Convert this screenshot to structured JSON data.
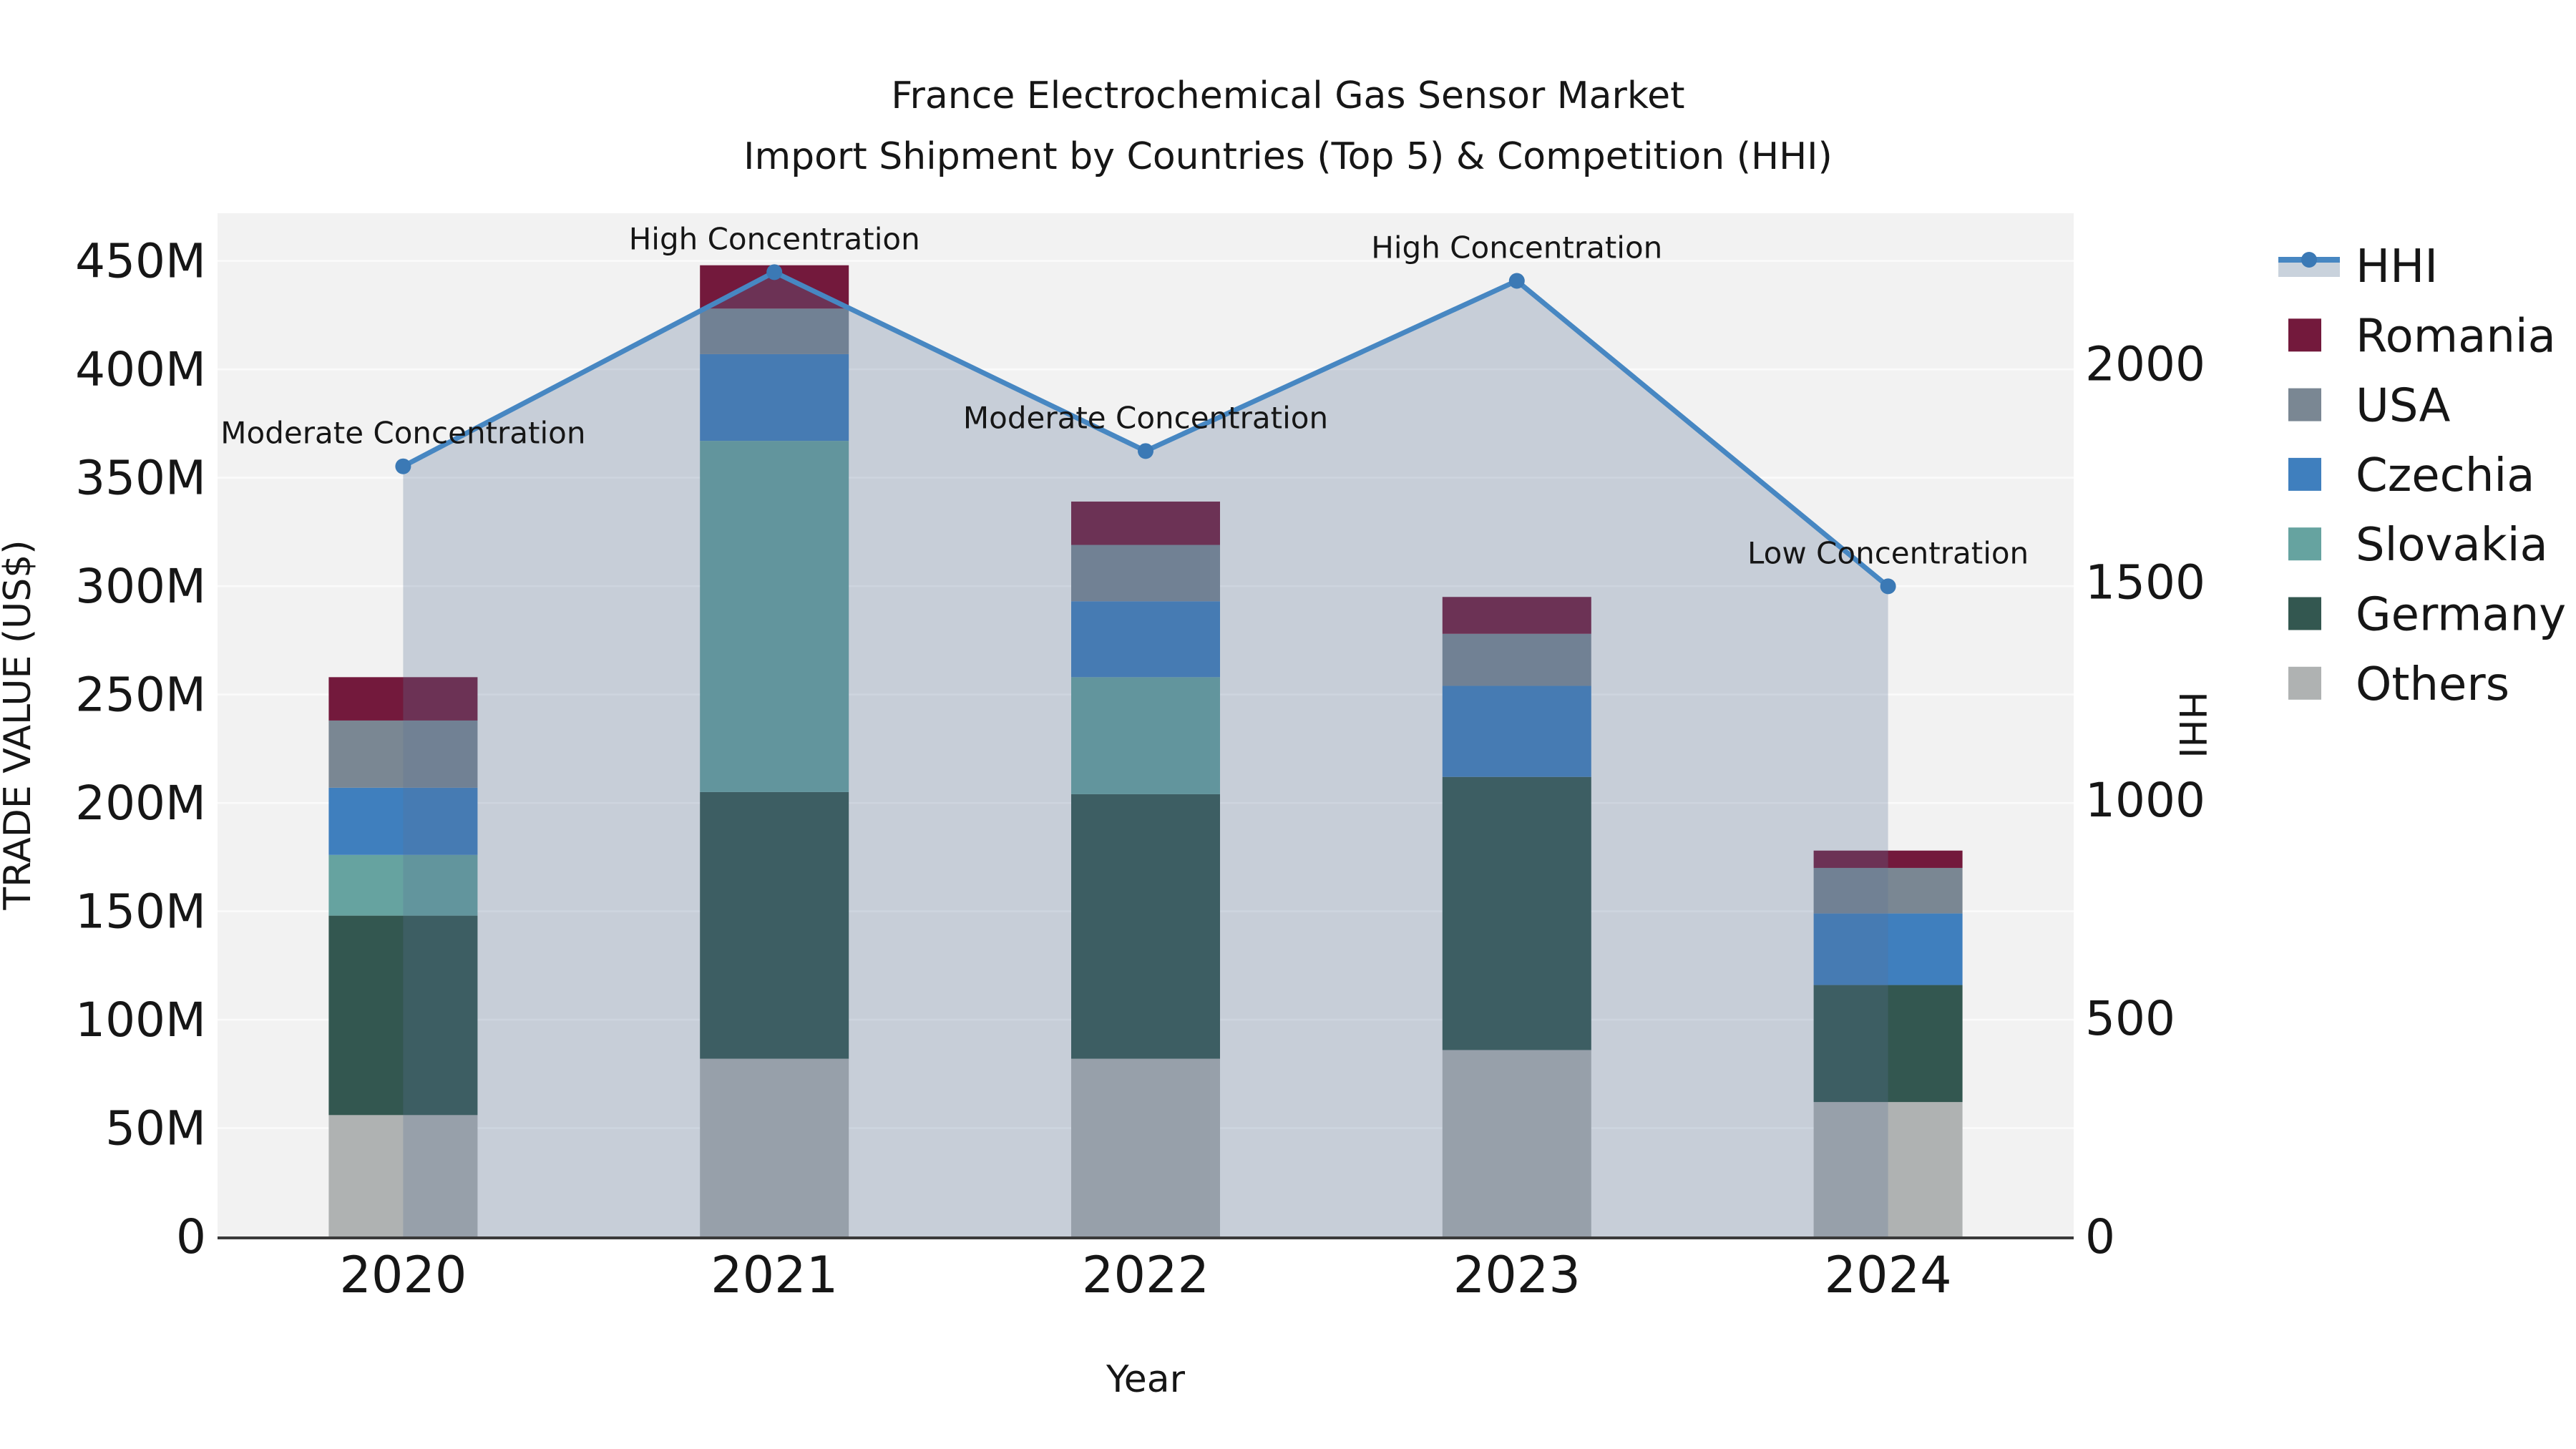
{
  "title": {
    "line1": "France Electrochemical Gas Sensor Market",
    "line2": "Import Shipment by Countries (Top 5) & Competition (HHI)"
  },
  "axes": {
    "x_title": "Year",
    "y_left_title": "TRADE VALUE (US$)",
    "y_right_title": "HHI"
  },
  "chart_data": {
    "type": "bar",
    "stacked": true,
    "title": "France Electrochemical Gas Sensor Market — Import Shipment by Countries (Top 5) & Competition (HHI)",
    "categories": [
      "2020",
      "2021",
      "2022",
      "2023",
      "2024"
    ],
    "series": [
      {
        "name": "Others",
        "color": "#AFB2B2",
        "values": [
          56,
          82,
          82,
          86,
          62
        ]
      },
      {
        "name": "Germany",
        "color": "#335750",
        "values": [
          92,
          123,
          122,
          126,
          54
        ]
      },
      {
        "name": "Slovakia",
        "color": "#66A3A0",
        "values": [
          28,
          162,
          54,
          0,
          0
        ]
      },
      {
        "name": "Czechia",
        "color": "#3F7FBE",
        "values": [
          31,
          40,
          35,
          42,
          33
        ]
      },
      {
        "name": "USA",
        "color": "#7A8793",
        "values": [
          31,
          21,
          26,
          24,
          21
        ]
      },
      {
        "name": "Romania",
        "color": "#73193C",
        "values": [
          20,
          20,
          20,
          17,
          8
        ]
      }
    ],
    "bar_totals": [
      258,
      448,
      339,
      295,
      178
    ],
    "line_series": {
      "name": "HHI",
      "values": [
        1765,
        2210,
        1800,
        2190,
        1490
      ],
      "color": "#4787C2",
      "marker_color": "#3B79B5",
      "fill_color": "rgba(90,115,150,0.28)",
      "legend_band_color": "#C9D2DC"
    },
    "annotations": [
      {
        "category": "2020",
        "text": "Moderate Concentration"
      },
      {
        "category": "2021",
        "text": "High Concentration"
      },
      {
        "category": "2022",
        "text": "Moderate Concentration"
      },
      {
        "category": "2023",
        "text": "High Concentration"
      },
      {
        "category": "2024",
        "text": "Low Concentration"
      }
    ],
    "left_axis": {
      "label": "TRADE VALUE (US$)",
      "tick_labels": [
        "0",
        "50M",
        "100M",
        "150M",
        "200M",
        "250M",
        "300M",
        "350M",
        "400M",
        "450M"
      ],
      "tick_values": [
        0,
        50,
        100,
        150,
        200,
        250,
        300,
        350,
        400,
        450
      ],
      "ylim": [
        0,
        472
      ]
    },
    "right_axis": {
      "label": "HHI",
      "tick_labels": [
        "0",
        "500",
        "1000",
        "1500",
        "2000"
      ],
      "tick_values": [
        0,
        500,
        1000,
        1500,
        2000
      ],
      "ylim": [
        0,
        2345
      ]
    },
    "x_axis": {
      "label": "Year"
    },
    "legend_position": "right",
    "grid": true,
    "plot_bg": "#F2F2F2",
    "grid_color": "#FBFBFB",
    "spine_color": "#3A3A3A"
  }
}
